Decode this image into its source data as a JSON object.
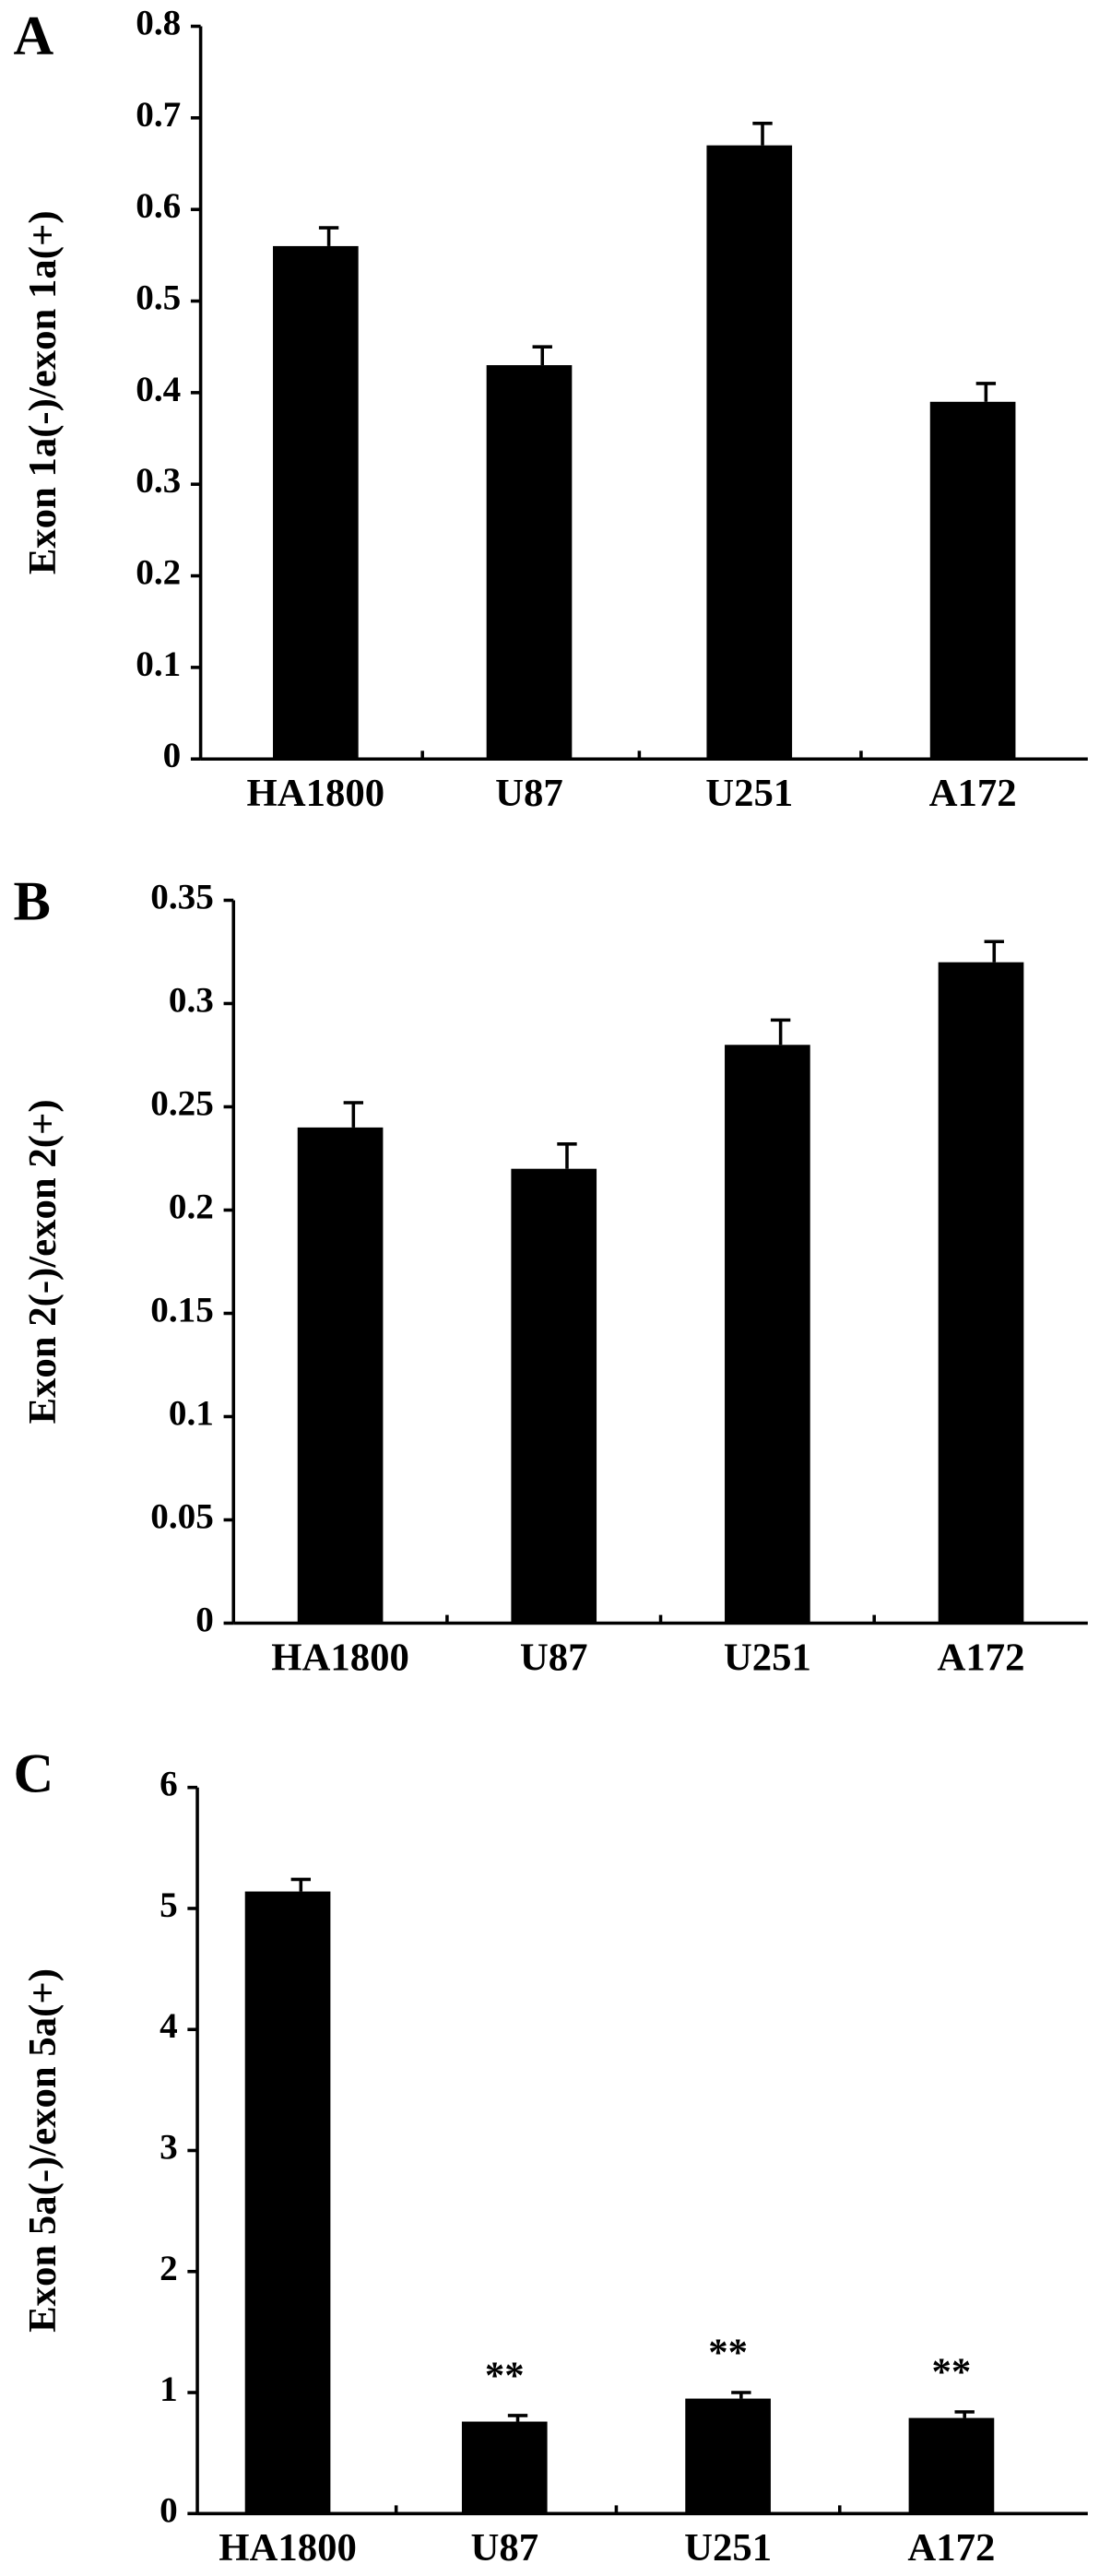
{
  "chart_data": [
    {
      "type": "bar",
      "panel": "A",
      "ylabel": "Exon 1a(-)/exon 1a(+)",
      "categories": [
        "HA1800",
        "U87",
        "U251",
        "A172"
      ],
      "values": [
        0.56,
        0.43,
        0.67,
        0.39
      ],
      "errors": [
        0.02,
        0.02,
        0.024,
        0.02
      ],
      "color": "#000000",
      "ylim": [
        0,
        0.8
      ],
      "yticks": [
        0,
        0.1,
        0.2,
        0.3,
        0.4,
        0.5,
        0.6,
        0.7,
        0.8
      ]
    },
    {
      "type": "bar",
      "panel": "B",
      "ylabel": "Exon 2(-)/exon 2(+)",
      "categories": [
        "HA1800",
        "U87",
        "U251",
        "A172"
      ],
      "values": [
        0.24,
        0.22,
        0.28,
        0.32
      ],
      "errors": [
        0.012,
        0.012,
        0.012,
        0.01
      ],
      "color": "#000000",
      "ylim": [
        0,
        0.35
      ],
      "yticks": [
        0,
        0.05,
        0.1,
        0.15,
        0.2,
        0.25,
        0.3,
        0.35
      ]
    },
    {
      "type": "bar",
      "panel": "C",
      "ylabel": "Exon 5a(-)/exon 5a(+)",
      "categories": [
        "HA1800",
        "U87",
        "U251",
        "A172"
      ],
      "values": [
        5.14,
        0.76,
        0.95,
        0.79
      ],
      "errors": [
        0.1,
        0.05,
        0.05,
        0.05
      ],
      "annotations": [
        null,
        "**",
        "**",
        "**"
      ],
      "color": "#000000",
      "ylim": [
        0,
        6
      ],
      "yticks": [
        0,
        1,
        2,
        3,
        4,
        5,
        6
      ]
    }
  ]
}
